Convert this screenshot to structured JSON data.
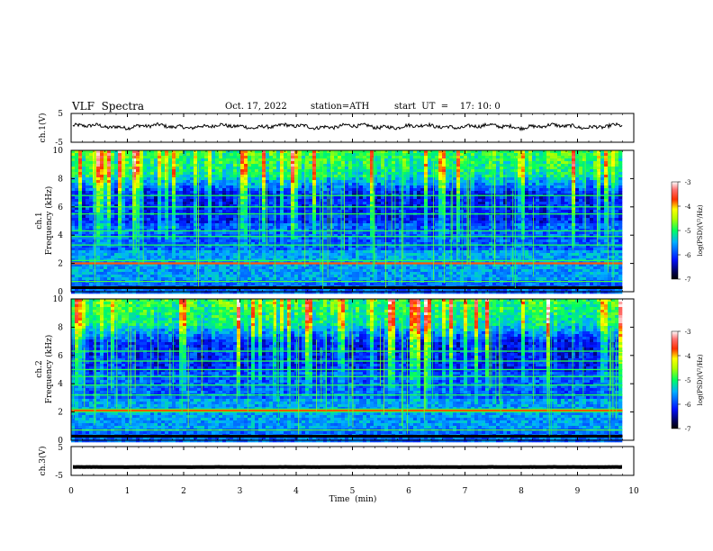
{
  "header": {
    "title": "VLF  Spectra",
    "date": "Oct. 17, 2022",
    "station": "station=ATH",
    "start": "start  UT  =    17: 10: 0"
  },
  "chart_data": [
    {
      "type": "line",
      "panel": "ch1-waveform",
      "ylabel": "ch.1(V)",
      "ylim": [
        -5,
        5
      ],
      "yticks": [
        "5",
        "-5"
      ],
      "trace_level": 0.5,
      "color": "#000000"
    },
    {
      "type": "heatmap",
      "panel": "ch1-spectrogram",
      "ylabel_line1": "ch.1",
      "ylabel_line2": "Frequency (kHz)",
      "ylim": [
        0,
        10
      ],
      "yticks": [
        "0",
        "2",
        "4",
        "6",
        "8",
        "10"
      ],
      "colorbar": {
        "label": "log(PSD)(V²/Hz)",
        "range": [
          -7,
          -3
        ],
        "ticks": [
          "-3",
          "-4",
          "-5",
          "-6",
          "-7"
        ]
      },
      "bands_khz": [
        2.0,
        2.2,
        3.3,
        3.9,
        4.3,
        5.5,
        6.0,
        6.8
      ],
      "strong_band_khz": 2.0
    },
    {
      "type": "heatmap",
      "panel": "ch2-spectrogram",
      "ylabel_line1": "ch.2",
      "ylabel_line2": "Frequency (kHz)",
      "ylim": [
        0,
        10
      ],
      "yticks": [
        "0",
        "2",
        "4",
        "6",
        "8",
        "10"
      ],
      "colorbar": {
        "label": "log(PSD)(V²/Hz)",
        "range": [
          -7,
          -3
        ],
        "ticks": [
          "-3",
          "-4",
          "-5",
          "-6",
          "-7"
        ]
      },
      "bands_khz": [
        2.0,
        2.2,
        3.2,
        3.9,
        4.5,
        5.0,
        5.6,
        6.3
      ],
      "strong_band_khz": 2.1
    },
    {
      "type": "line",
      "panel": "ch3-waveform",
      "ylabel": "ch.3(V)",
      "ylim": [
        -5,
        5
      ],
      "yticks": [
        "5",
        "-5"
      ],
      "trace_level": -2.1,
      "color": "#000000"
    }
  ],
  "x_axis": {
    "xlabel": "Time  (min)",
    "xlim": [
      0,
      10
    ],
    "data_end": 9.8,
    "ticks": [
      "0",
      "1",
      "2",
      "3",
      "4",
      "5",
      "6",
      "7",
      "8",
      "9",
      "10"
    ]
  }
}
